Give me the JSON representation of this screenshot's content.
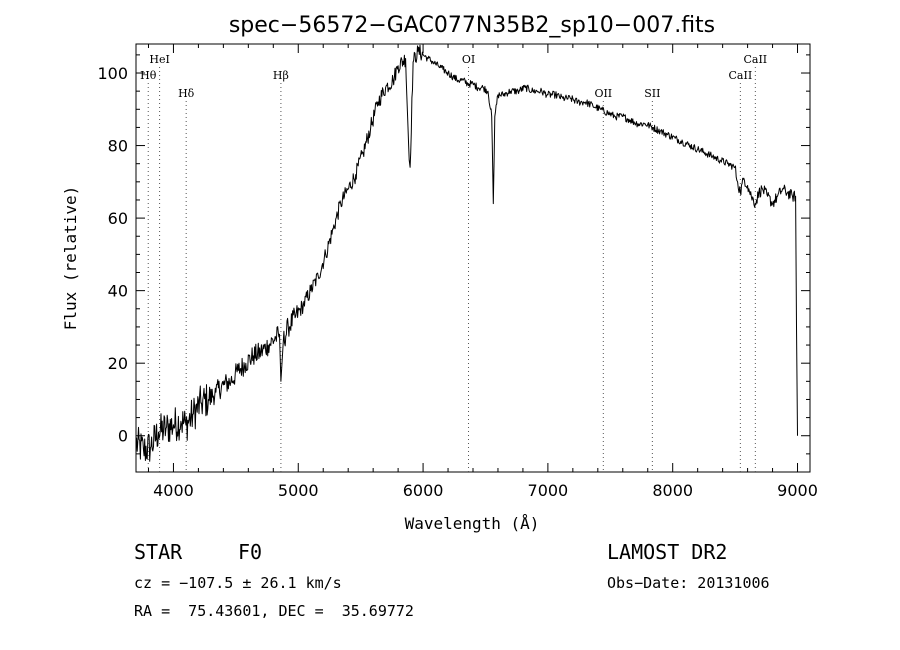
{
  "chart_data": {
    "type": "line",
    "title": "spec−56572−GAC077N35B2_sp10−007.fits",
    "xlabel": "Wavelength (Å)",
    "ylabel": "Flux (relative)",
    "xlim": [
      3700,
      9100
    ],
    "ylim": [
      -10,
      108
    ],
    "xticks": [
      4000,
      5000,
      6000,
      7000,
      8000,
      9000
    ],
    "yticks": [
      0,
      20,
      40,
      60,
      80,
      100
    ],
    "xtick_labels": [
      "4000",
      "5000",
      "6000",
      "7000",
      "8000",
      "9000"
    ],
    "ytick_labels": [
      "0",
      "20",
      "40",
      "60",
      "80",
      "100"
    ],
    "grid": false,
    "line_color": "#000000",
    "series": [
      {
        "x": [
          3700,
          3760,
          3820,
          3880,
          3940,
          4000,
          4060,
          4100,
          4160,
          4220,
          4280,
          4340,
          4400,
          4460,
          4520,
          4580,
          4640,
          4700,
          4760,
          4820,
          4850,
          4861,
          4880,
          4920,
          4980,
          5040,
          5100,
          5160,
          5220,
          5280,
          5340,
          5400,
          5460,
          5520,
          5580,
          5640,
          5700,
          5760,
          5800,
          5860,
          5889,
          5896,
          5920,
          5960,
          6000,
          6040,
          6080,
          6120,
          6160,
          6200,
          6240,
          6280,
          6320,
          6360,
          6400,
          6440,
          6480,
          6520,
          6550,
          6563,
          6575,
          6600,
          6640,
          6700,
          6760,
          6820,
          6880,
          6940,
          7000,
          7060,
          7120,
          7180,
          7240,
          7300,
          7360,
          7420,
          7480,
          7540,
          7600,
          7660,
          7720,
          7780,
          7840,
          7900,
          7960,
          8020,
          8080,
          8140,
          8200,
          8260,
          8320,
          8380,
          8440,
          8498,
          8520,
          8542,
          8570,
          8600,
          8630,
          8662,
          8690,
          8720,
          8760,
          8800,
          8840,
          8880,
          8920,
          8960,
          8985,
          8992,
          9000
        ],
        "y": [
          -2,
          -4,
          -3,
          1,
          2,
          3,
          4,
          3,
          6,
          9,
          10,
          12,
          14,
          15,
          18,
          20,
          22,
          23,
          25,
          27,
          28,
          15,
          26,
          30,
          33,
          36,
          40,
          44,
          50,
          57,
          64,
          68,
          72,
          78,
          85,
          92,
          96,
          98,
          102,
          104,
          76,
          74,
          103,
          106,
          105,
          104,
          103,
          102,
          101,
          100,
          99,
          98,
          98,
          97,
          97,
          96,
          96,
          95,
          88,
          64,
          88,
          94,
          94,
          95,
          95,
          96,
          95,
          95,
          94,
          94,
          93,
          93,
          92,
          92,
          91,
          90,
          89,
          88,
          88,
          87,
          86,
          86,
          85,
          84,
          83,
          82,
          81,
          80,
          79,
          78,
          77,
          76,
          75,
          74,
          70,
          67,
          71,
          69,
          66,
          64,
          67,
          68,
          66,
          64,
          66,
          68,
          67,
          66,
          66,
          30,
          0
        ]
      }
    ],
    "line_annotations": [
      {
        "label": "Hθ",
        "x": 3798,
        "row": 2
      },
      {
        "label": "HeI",
        "x": 3889,
        "row": 1
      },
      {
        "label": "Hδ",
        "x": 4102,
        "row": 3
      },
      {
        "label": "Hβ",
        "x": 4861,
        "row": 2
      },
      {
        "label": "OI",
        "x": 6364,
        "row": 1
      },
      {
        "label": "OII",
        "x": 7444,
        "row": 3
      },
      {
        "label": "SII",
        "x": 7837,
        "row": 3
      },
      {
        "label": "CaII",
        "x": 8542,
        "row": 2
      },
      {
        "label": "CaII",
        "x": 8662,
        "row": 1
      }
    ]
  },
  "info": {
    "object_class": "STAR",
    "subclass": "F0",
    "survey": "LAMOST DR2",
    "cz": "cz = −107.5 ± 26.1 km/s",
    "obs_date": "Obs−Date: 20131006",
    "coords": "RA =  75.43601, DEC =  35.69772"
  }
}
